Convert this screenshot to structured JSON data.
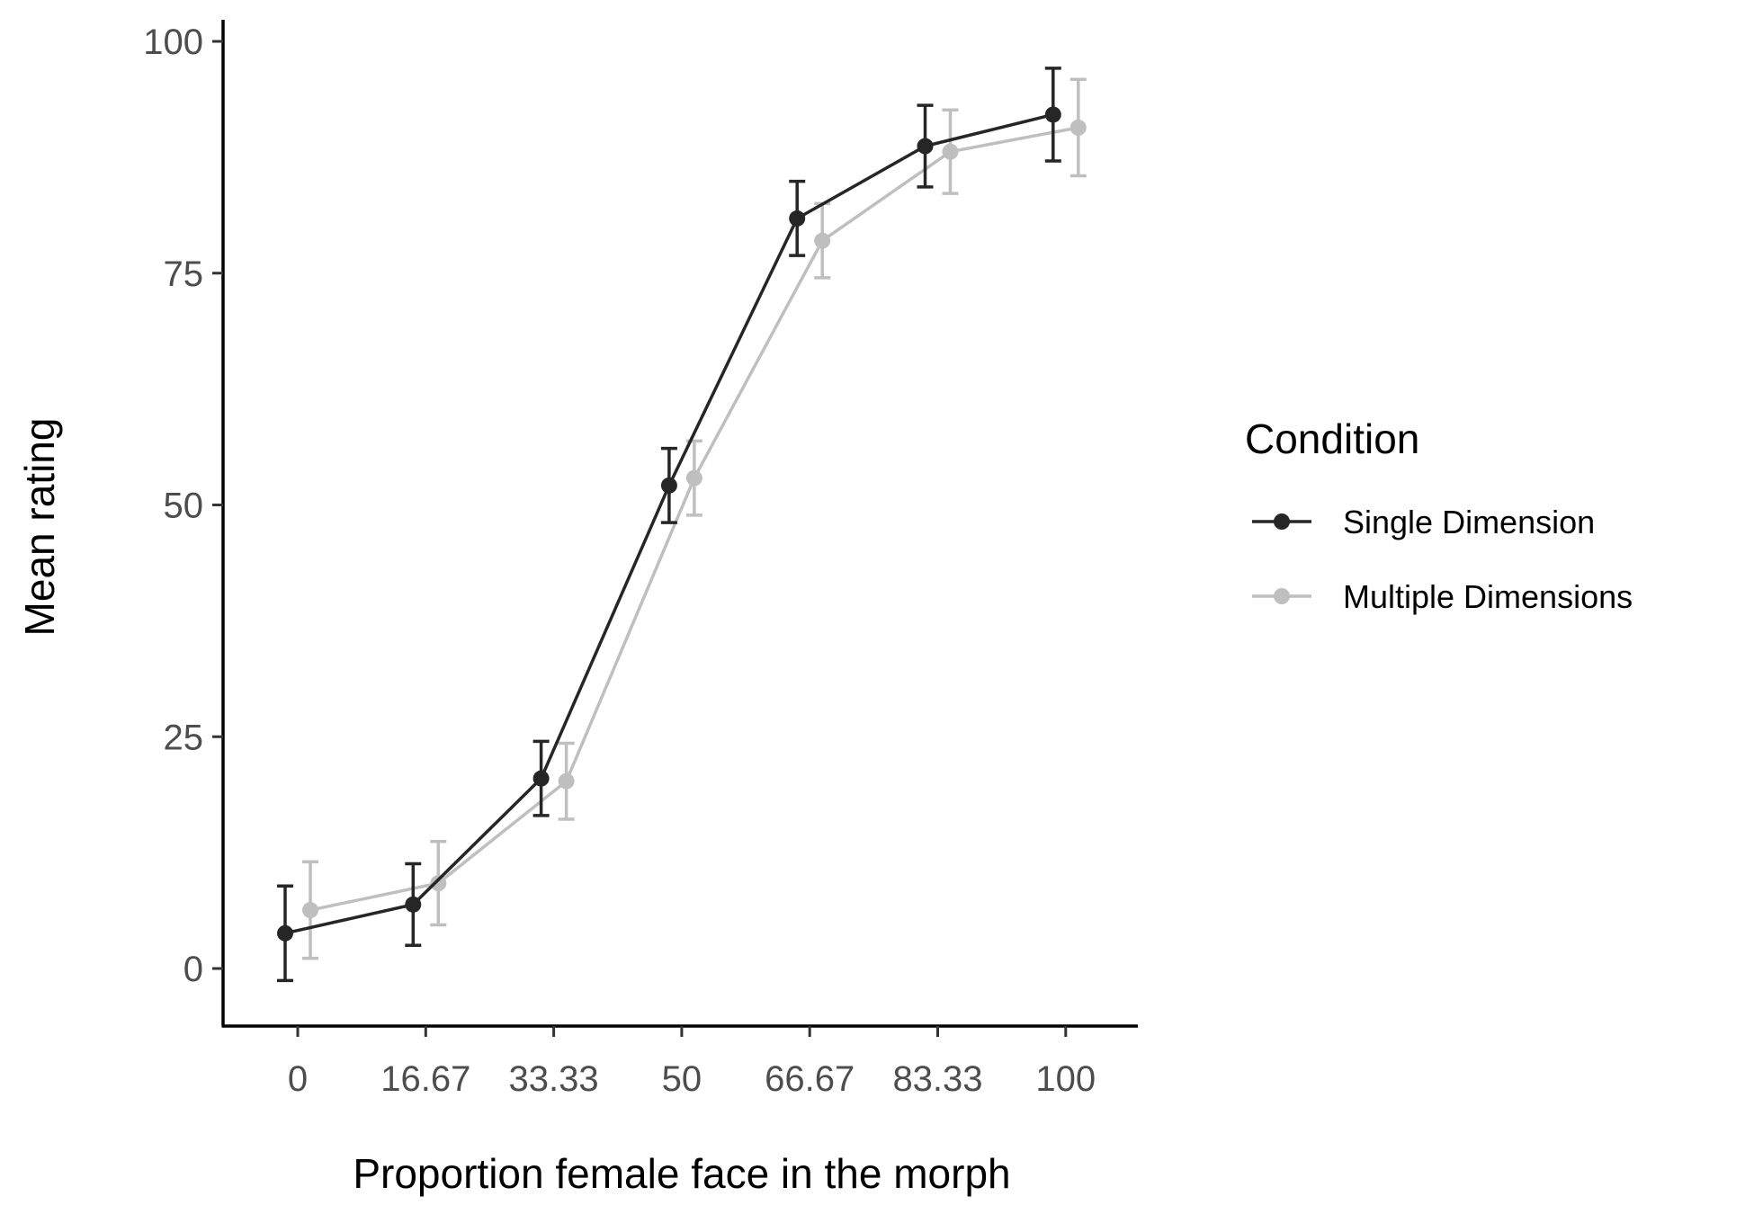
{
  "chart_data": {
    "type": "line",
    "title": "",
    "xlabel": "Proportion female face in the morph",
    "ylabel": "Mean rating",
    "categories": [
      "0",
      "16.67",
      "33.33",
      "50",
      "66.67",
      "83.33",
      "100"
    ],
    "ylim": [
      -6,
      102
    ],
    "yticks": [
      "0",
      "25",
      "50",
      "75",
      "100"
    ],
    "grid": false,
    "error_bars": true,
    "legend": {
      "title": "Condition",
      "position": "right"
    },
    "series": [
      {
        "name": "Single Dimension",
        "color": "#262626",
        "values": [
          3.8,
          6.9,
          20.5,
          52.1,
          80.9,
          88.7,
          92.1
        ],
        "lower": [
          -1.3,
          2.5,
          16.5,
          48.1,
          76.9,
          84.3,
          87.1
        ],
        "upper": [
          8.9,
          11.3,
          24.5,
          56.1,
          84.9,
          93.1,
          97.1
        ]
      },
      {
        "name": "Multiple Dimensions",
        "color": "#bfbfbf",
        "values": [
          6.3,
          9.2,
          20.2,
          52.9,
          78.5,
          88.1,
          90.7
        ],
        "lower": [
          1.1,
          4.7,
          16.1,
          48.9,
          74.5,
          83.6,
          85.5
        ],
        "upper": [
          11.5,
          13.7,
          24.3,
          56.9,
          82.5,
          92.6,
          95.9
        ]
      }
    ]
  }
}
